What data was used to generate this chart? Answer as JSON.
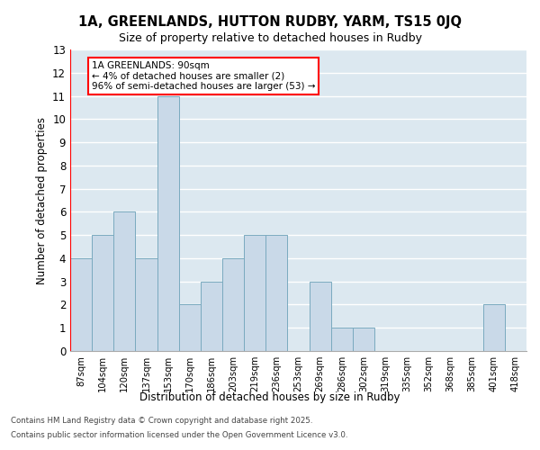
{
  "title_line1": "1A, GREENLANDS, HUTTON RUDBY, YARM, TS15 0JQ",
  "title_line2": "Size of property relative to detached houses in Rudby",
  "xlabel": "Distribution of detached houses by size in Rudby",
  "ylabel": "Number of detached properties",
  "categories": [
    "87sqm",
    "104sqm",
    "120sqm",
    "137sqm",
    "153sqm",
    "170sqm",
    "186sqm",
    "203sqm",
    "219sqm",
    "236sqm",
    "253sqm",
    "269sqm",
    "286sqm",
    "302sqm",
    "319sqm",
    "335sqm",
    "352sqm",
    "368sqm",
    "385sqm",
    "401sqm",
    "418sqm"
  ],
  "values": [
    4,
    5,
    6,
    4,
    11,
    2,
    3,
    4,
    5,
    5,
    0,
    3,
    1,
    1,
    0,
    0,
    0,
    0,
    0,
    2,
    0
  ],
  "bar_color": "#c9d9e8",
  "bar_edge_color": "#7aaabf",
  "annotation_text": "1A GREENLANDS: 90sqm\n← 4% of detached houses are smaller (2)\n96% of semi-detached houses are larger (53) →",
  "annotation_box_color": "white",
  "annotation_box_edge": "red",
  "ylim": [
    0,
    13
  ],
  "yticks": [
    0,
    1,
    2,
    3,
    4,
    5,
    6,
    7,
    8,
    9,
    10,
    11,
    12,
    13
  ],
  "background_color": "#dce8f0",
  "grid_color": "white",
  "footer_line1": "Contains HM Land Registry data © Crown copyright and database right 2025.",
  "footer_line2": "Contains public sector information licensed under the Open Government Licence v3.0."
}
